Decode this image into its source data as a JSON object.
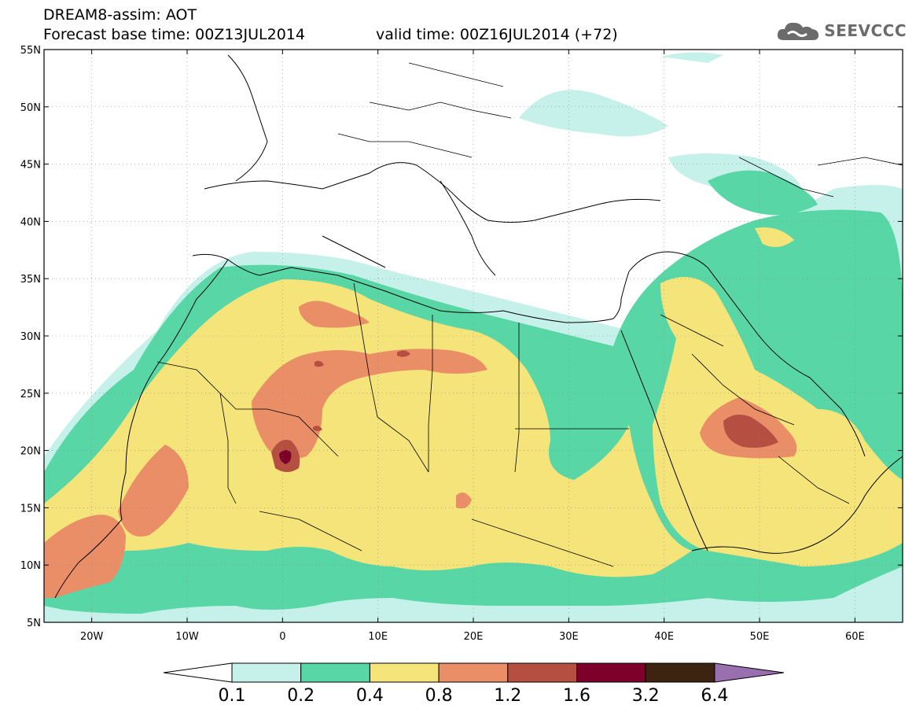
{
  "header": {
    "line1": "DREAM8-assim: AOT",
    "line2": "Forecast base time: 00Z13JUL2014",
    "line3": "valid time: 00Z16JUL2014 (+72)"
  },
  "logo": {
    "text": "SEEVCCC",
    "icon": "cloud-icon",
    "color": "#6b6b6b"
  },
  "map": {
    "lon_range": [
      -25,
      65
    ],
    "lat_range": [
      5,
      55
    ],
    "lat_ticks": [
      {
        "value": 55,
        "label": "55N"
      },
      {
        "value": 50,
        "label": "50N"
      },
      {
        "value": 45,
        "label": "45N"
      },
      {
        "value": 40,
        "label": "40N"
      },
      {
        "value": 35,
        "label": "35N"
      },
      {
        "value": 30,
        "label": "30N"
      },
      {
        "value": 25,
        "label": "25N"
      },
      {
        "value": 20,
        "label": "20N"
      },
      {
        "value": 15,
        "label": "15N"
      },
      {
        "value": 10,
        "label": "10N"
      },
      {
        "value": 5,
        "label": "5N"
      }
    ],
    "lon_ticks": [
      {
        "value": -20,
        "label": "20W"
      },
      {
        "value": -10,
        "label": "10W"
      },
      {
        "value": 0,
        "label": "0"
      },
      {
        "value": 10,
        "label": "10E"
      },
      {
        "value": 20,
        "label": "20E"
      },
      {
        "value": 30,
        "label": "30E"
      },
      {
        "value": 40,
        "label": "40E"
      },
      {
        "value": 50,
        "label": "50E"
      },
      {
        "value": 60,
        "label": "60E"
      }
    ],
    "grid": true
  },
  "colorbar": {
    "labels": [
      "0.1",
      "0.2",
      "0.4",
      "0.8",
      "1.2",
      "1.6",
      "3.2",
      "6.4"
    ],
    "colors": [
      "#c6f1ea",
      "#58d6a6",
      "#f5e479",
      "#ea8e68",
      "#b54f42",
      "#7c0029",
      "#3d2410",
      "#9a6fb0"
    ],
    "low_color": "#ffffff"
  }
}
